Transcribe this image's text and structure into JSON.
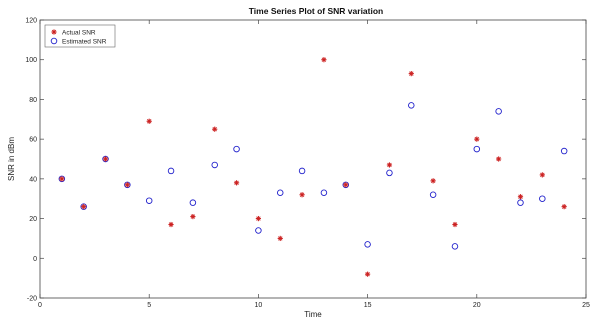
{
  "chart_data": {
    "type": "scatter",
    "title": "Time Series Plot of SNR variation",
    "xlabel": "Time",
    "ylabel": "SNR in dBm",
    "xlim": [
      0,
      25
    ],
    "ylim": [
      -20,
      120
    ],
    "xticks": [
      0,
      5,
      10,
      15,
      20,
      25
    ],
    "yticks": [
      -20,
      0,
      20,
      40,
      60,
      80,
      100,
      120
    ],
    "grid": false,
    "legend_position": "top-left",
    "series": [
      {
        "name": "Actual SNR",
        "marker": "star",
        "color": "#cc2222",
        "x": [
          1,
          2,
          3,
          4,
          5,
          6,
          7,
          8,
          9,
          10,
          11,
          12,
          13,
          14,
          15,
          16,
          17,
          18,
          19,
          20,
          21,
          22,
          23,
          24
        ],
        "y": [
          40,
          26,
          50,
          37,
          69,
          17,
          21,
          65,
          38,
          20,
          10,
          32,
          100,
          37,
          -8,
          47,
          93,
          39,
          17,
          60,
          50,
          31,
          42,
          26
        ]
      },
      {
        "name": "Estimated SNR",
        "marker": "circle",
        "color": "#2222cc",
        "x": [
          1,
          2,
          3,
          4,
          5,
          6,
          7,
          8,
          9,
          10,
          11,
          12,
          13,
          14,
          15,
          16,
          17,
          18,
          19,
          20,
          21,
          22,
          23,
          24
        ],
        "y": [
          40,
          26,
          50,
          37,
          29,
          44,
          28,
          47,
          55,
          14,
          33,
          44,
          33,
          37,
          7,
          43,
          77,
          32,
          6,
          55,
          74,
          28,
          30,
          54
        ]
      }
    ]
  }
}
